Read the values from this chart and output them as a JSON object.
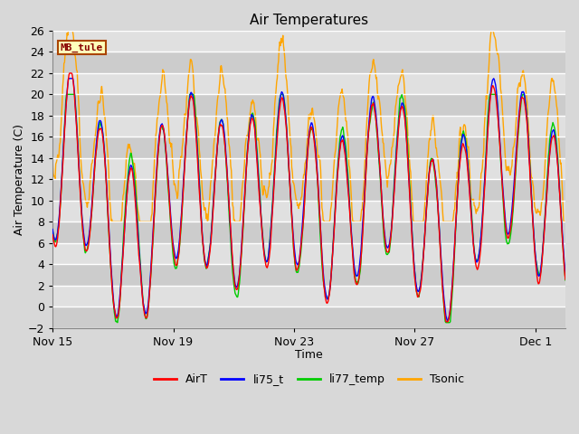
{
  "title": "Air Temperatures",
  "xlabel": "Time",
  "ylabel": "Air Temperature (C)",
  "ylim": [
    -2,
    26
  ],
  "yticks": [
    -2,
    0,
    2,
    4,
    6,
    8,
    10,
    12,
    14,
    16,
    18,
    20,
    22,
    24,
    26
  ],
  "series_colors": {
    "AirT": "#ff0000",
    "li75_t": "#0000ff",
    "li77_temp": "#00cc00",
    "Tsonic": "#ffa500"
  },
  "series_linewidths": {
    "AirT": 1.0,
    "li75_t": 1.0,
    "li77_temp": 1.0,
    "Tsonic": 1.0
  },
  "annotation_text": "MB_tule",
  "background_color": "#d8d8d8",
  "plot_bg_color": "#d8d8d8",
  "grid_color": "#ffffff",
  "title_fontsize": 11,
  "axis_label_fontsize": 9,
  "tick_fontsize": 9,
  "legend_fontsize": 9,
  "xtick_labels": [
    "Nov 15",
    "Nov 19",
    "Nov 23",
    "Nov 27",
    "Dec 1"
  ],
  "total_days": 17,
  "n_points": 816
}
